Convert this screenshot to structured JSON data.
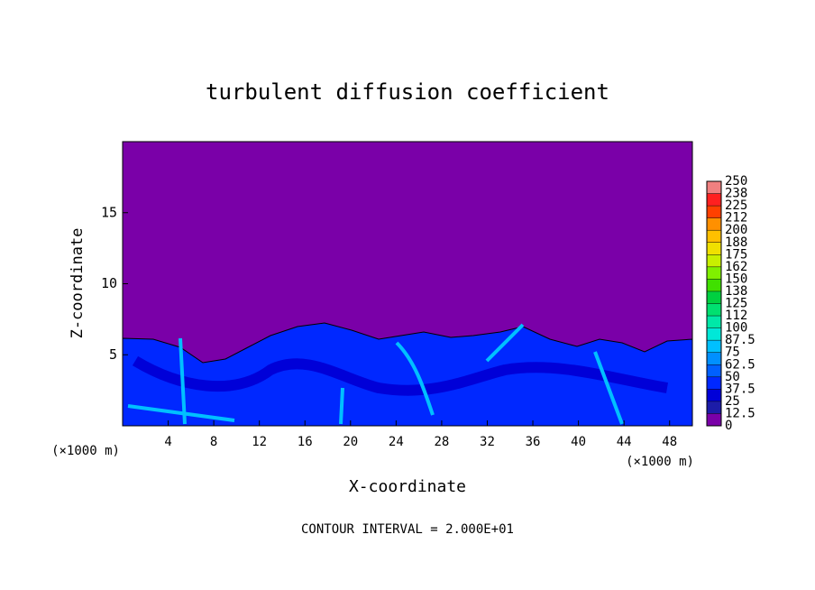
{
  "chart_data": {
    "type": "contour",
    "title": "turbulent diffusion coefficient",
    "x_label": "X-coordinate",
    "y_label": "Z-coordinate",
    "x_unit_labels": [
      "(×1000 m)",
      "(×1000 m)"
    ],
    "footer": "CONTOUR INTERVAL = 2.000E+01",
    "xlim": [
      0,
      50
    ],
    "xticks": [
      4,
      8,
      12,
      16,
      20,
      24,
      28,
      32,
      36,
      40,
      44,
      48
    ],
    "ylim": [
      0,
      20
    ],
    "yticks": [
      5,
      10,
      15
    ],
    "colorbar": {
      "levels": [
        0,
        12.5,
        25,
        37.5,
        50,
        62.5,
        75,
        87.5,
        100,
        112,
        125,
        138,
        150,
        162,
        175,
        188,
        200,
        212,
        225,
        238,
        250
      ],
      "colors": [
        "#7a00a8",
        "#1c1ca8",
        "#0000d8",
        "#0028ff",
        "#0060ff",
        "#0090ff",
        "#00c0ff",
        "#00e8d8",
        "#00e8a8",
        "#00e070",
        "#00d040",
        "#40e000",
        "#80f000",
        "#c8f000",
        "#f0e000",
        "#ffc000",
        "#ff9000",
        "#ff4000",
        "#ff2020",
        "#f08080"
      ]
    }
  }
}
